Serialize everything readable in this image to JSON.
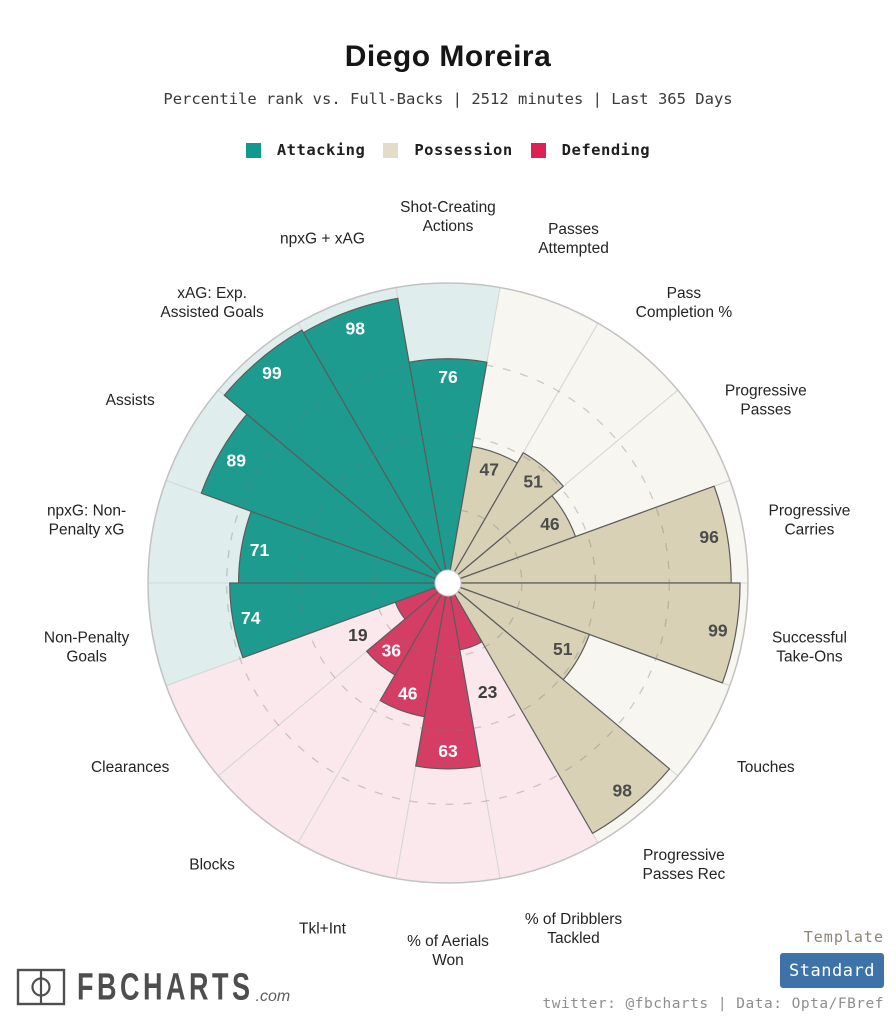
{
  "chart_data": {
    "type": "pizza-polar-bar",
    "title": "Diego Moreira",
    "subtitle": "Percentile rank vs. Full-Backs | 2512 minutes | Last 365 Days",
    "scale": [
      0,
      100
    ],
    "ring_guides": [
      25,
      50,
      75
    ],
    "start_angle_deg": -10,
    "slice_angle_deg": 20,
    "grid": {
      "outer_circle_color": "#c2c2c2",
      "sector_border_color": "#d6d6d6",
      "slice_border_color": "#5c5c5c",
      "dashed_ring_color": "#777777",
      "outside_value_color": "#3f3f3f",
      "label_color": "#242424"
    },
    "groups": [
      {
        "id": "attacking",
        "label": "Attacking",
        "slice_color": "#1d9b8f",
        "bg_color": "#dfeeec",
        "legend_color": "#11998f",
        "value_text_color": "#ffffff"
      },
      {
        "id": "possession",
        "label": "Possession",
        "slice_color": "#d8d1b5",
        "bg_color": "#f7f6f0",
        "legend_color": "#e3dcc6",
        "value_text_color": "#4c4c4c"
      },
      {
        "id": "defending",
        "label": "Defending",
        "slice_color": "#d53e64",
        "bg_color": "#fae8ed",
        "legend_color": "#dd2152",
        "value_text_color": "#ffffff"
      }
    ],
    "slices": [
      {
        "label": "Shot-Creating Actions",
        "lines": [
          "Shot-Creating",
          "Actions"
        ],
        "value": 76,
        "group": "attacking",
        "value_label_placement": "inside"
      },
      {
        "label": "Passes Attempted",
        "lines": [
          "Passes",
          "Attempted"
        ],
        "value": 47,
        "group": "possession",
        "value_label_placement": "inside"
      },
      {
        "label": "Pass Completion %",
        "lines": [
          "Pass",
          "Completion %"
        ],
        "value": 51,
        "group": "possession",
        "value_label_placement": "inside"
      },
      {
        "label": "Progressive Passes",
        "lines": [
          "Progressive",
          "Passes"
        ],
        "value": 46,
        "group": "possession",
        "value_label_placement": "inside"
      },
      {
        "label": "Progressive Carries",
        "lines": [
          "Progressive",
          "Carries"
        ],
        "value": 96,
        "group": "possession",
        "value_label_placement": "inside"
      },
      {
        "label": "Successful Take-Ons",
        "lines": [
          "Successful",
          "Take-Ons"
        ],
        "value": 99,
        "group": "possession",
        "value_label_placement": "inside"
      },
      {
        "label": "Touches",
        "lines": [
          "Touches"
        ],
        "value": 51,
        "group": "possession",
        "value_label_placement": "inside"
      },
      {
        "label": "Progressive Passes Rec",
        "lines": [
          "Progressive",
          "Passes Rec"
        ],
        "value": 98,
        "group": "possession",
        "value_label_placement": "inside"
      },
      {
        "label": "% of Dribblers Tackled",
        "lines": [
          "% of Dribblers",
          "Tackled"
        ],
        "value": 23,
        "group": "defending",
        "value_label_placement": "outside"
      },
      {
        "label": "% of Aerials Won",
        "lines": [
          "% of Aerials",
          "Won"
        ],
        "value": 63,
        "group": "defending",
        "value_label_placement": "inside"
      },
      {
        "label": "Tkl+Int",
        "lines": [
          "Tkl+Int"
        ],
        "value": 46,
        "group": "defending",
        "value_label_placement": "inside"
      },
      {
        "label": "Blocks",
        "lines": [
          "Blocks"
        ],
        "value": 36,
        "group": "defending",
        "value_label_placement": "inside"
      },
      {
        "label": "Clearances",
        "lines": [
          "Clearances"
        ],
        "value": 19,
        "group": "defending",
        "value_label_placement": "outside"
      },
      {
        "label": "Non-Penalty Goals",
        "lines": [
          "Non-Penalty",
          "Goals"
        ],
        "value": 74,
        "group": "attacking",
        "value_label_placement": "inside"
      },
      {
        "label": "npxG: Non-Penalty xG",
        "lines": [
          "npxG: Non-",
          "Penalty xG"
        ],
        "value": 71,
        "group": "attacking",
        "value_label_placement": "inside"
      },
      {
        "label": "Assists",
        "lines": [
          "Assists"
        ],
        "value": 89,
        "group": "attacking",
        "value_label_placement": "inside"
      },
      {
        "label": "xAG: Exp. Assisted Goals",
        "lines": [
          "xAG: Exp.",
          "Assisted Goals"
        ],
        "value": 99,
        "group": "attacking",
        "value_label_placement": "inside"
      },
      {
        "label": "npxG + xAG",
        "lines": [
          "npxG + xAG"
        ],
        "value": 98,
        "group": "attacking",
        "value_label_placement": "inside"
      }
    ]
  },
  "footer": {
    "brand": "FBCHARTS",
    "brand_suffix": ".com",
    "template_label": "Template",
    "template_value": "Standard",
    "credit": "twitter: @fbcharts | Data: Opta/FBref"
  }
}
